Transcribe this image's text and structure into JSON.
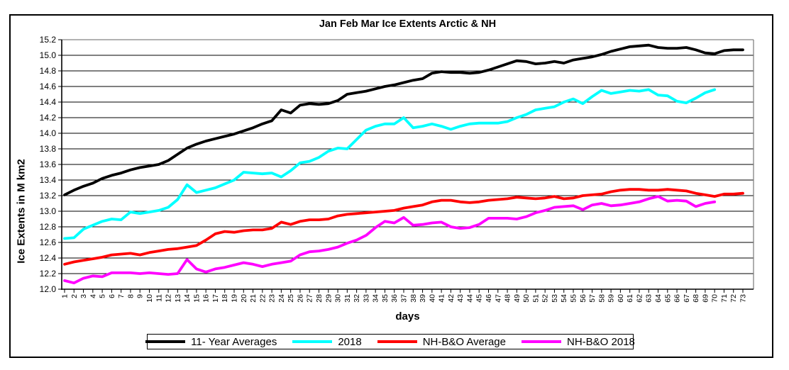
{
  "title": "Jan Feb Mar Ice Extents Arctic & NH",
  "legend": {
    "entries": [
      "11- Year Averages",
      "2018",
      "NH-B&O Average",
      "NH-B&O 2018"
    ]
  },
  "chart_data": {
    "type": "line",
    "title": "Jan Feb Mar Ice Extents Arctic & NH",
    "xlabel": "days",
    "ylabel": "Ice Extents in M km2",
    "ylim": [
      12.0,
      15.2
    ],
    "ytick_step": 0.2,
    "grid": "horizontal",
    "legend_position": "bottom",
    "yticks": [
      "12.0",
      "12.2",
      "12.4",
      "12.6",
      "12.8",
      "13.0",
      "13.2",
      "13.4",
      "13.6",
      "13.8",
      "14.0",
      "14.2",
      "14.4",
      "14.6",
      "14.8",
      "15.0",
      "15.2"
    ],
    "xticks": [
      1,
      2,
      3,
      4,
      5,
      6,
      7,
      8,
      9,
      10,
      11,
      12,
      13,
      14,
      15,
      16,
      17,
      18,
      19,
      20,
      21,
      22,
      23,
      24,
      25,
      26,
      27,
      28,
      29,
      30,
      31,
      32,
      33,
      34,
      35,
      36,
      37,
      38,
      39,
      40,
      41,
      42,
      43,
      44,
      45,
      46,
      47,
      48,
      49,
      50,
      51,
      52,
      53,
      54,
      55,
      56,
      57,
      58,
      59,
      60,
      61,
      62,
      63,
      64,
      65,
      66,
      67,
      68,
      69,
      70,
      71,
      72,
      73
    ],
    "series": [
      {
        "name": "11- Year Averages",
        "color": "#000000",
        "values": [
          13.21,
          13.27,
          13.32,
          13.36,
          13.42,
          13.46,
          13.49,
          13.53,
          13.56,
          13.58,
          13.6,
          13.65,
          13.73,
          13.81,
          13.86,
          13.9,
          13.93,
          13.96,
          13.99,
          14.03,
          14.07,
          14.12,
          14.16,
          14.3,
          14.26,
          14.36,
          14.38,
          14.37,
          14.38,
          14.42,
          14.5,
          14.52,
          14.54,
          14.57,
          14.6,
          14.62,
          14.65,
          14.68,
          14.7,
          14.77,
          14.79,
          14.78,
          14.78,
          14.77,
          14.78,
          14.81,
          14.85,
          14.89,
          14.93,
          14.92,
          14.89,
          14.9,
          14.92,
          14.9,
          14.94,
          14.96,
          14.98,
          15.01,
          15.05,
          15.08,
          15.11,
          15.12,
          15.13,
          15.1,
          15.09,
          15.09,
          15.1,
          15.07,
          15.03,
          15.02,
          15.06,
          15.07,
          15.07
        ]
      },
      {
        "name": "2018",
        "color": "#00FFFF",
        "values": [
          12.65,
          12.66,
          12.77,
          12.82,
          12.87,
          12.9,
          12.89,
          12.99,
          12.97,
          12.99,
          13.01,
          13.05,
          13.15,
          13.34,
          13.24,
          13.27,
          13.3,
          13.35,
          13.4,
          13.5,
          13.49,
          13.48,
          13.49,
          13.44,
          13.52,
          13.62,
          13.64,
          13.69,
          13.77,
          13.81,
          13.8,
          13.92,
          14.04,
          14.09,
          14.12,
          14.12,
          14.2,
          14.07,
          14.09,
          14.12,
          14.09,
          14.05,
          14.09,
          14.12,
          14.13,
          14.13,
          14.13,
          14.15,
          14.2,
          14.24,
          14.3,
          14.32,
          14.34,
          14.4,
          14.44,
          14.38,
          14.47,
          14.55,
          14.51,
          14.53,
          14.55,
          14.54,
          14.56,
          14.49,
          14.48,
          14.41,
          14.39,
          14.45,
          14.52,
          14.56
        ]
      },
      {
        "name": "NH-B&O Average",
        "color": "#FF0000",
        "values": [
          12.32,
          12.35,
          12.37,
          12.39,
          12.41,
          12.44,
          12.45,
          12.46,
          12.44,
          12.47,
          12.49,
          12.51,
          12.52,
          12.54,
          12.56,
          12.63,
          12.71,
          12.74,
          12.73,
          12.75,
          12.76,
          12.76,
          12.78,
          12.86,
          12.83,
          12.87,
          12.89,
          12.89,
          12.9,
          12.94,
          12.96,
          12.97,
          12.98,
          12.99,
          13.0,
          13.01,
          13.04,
          13.06,
          13.08,
          13.12,
          13.14,
          13.14,
          13.12,
          13.11,
          13.12,
          13.14,
          13.15,
          13.16,
          13.18,
          13.17,
          13.16,
          13.17,
          13.19,
          13.16,
          13.17,
          13.2,
          13.21,
          13.22,
          13.25,
          13.27,
          13.28,
          13.28,
          13.27,
          13.27,
          13.28,
          13.27,
          13.26,
          13.23,
          13.21,
          13.19,
          13.22,
          13.22,
          13.23
        ]
      },
      {
        "name": "NH-B&O 2018",
        "color": "#FF00FF",
        "values": [
          12.11,
          12.08,
          12.14,
          12.17,
          12.16,
          12.21,
          12.21,
          12.21,
          12.2,
          12.21,
          12.2,
          12.19,
          12.2,
          12.38,
          12.26,
          12.22,
          12.26,
          12.28,
          12.31,
          12.34,
          12.32,
          12.29,
          12.32,
          12.34,
          12.36,
          12.44,
          12.48,
          12.49,
          12.51,
          12.54,
          12.59,
          12.63,
          12.69,
          12.79,
          12.87,
          12.85,
          12.92,
          12.82,
          12.83,
          12.85,
          12.86,
          12.8,
          12.78,
          12.79,
          12.83,
          12.91,
          12.91,
          12.91,
          12.9,
          12.93,
          12.98,
          13.01,
          13.05,
          13.06,
          13.07,
          13.02,
          13.08,
          13.1,
          13.07,
          13.08,
          13.1,
          13.12,
          13.16,
          13.19,
          13.13,
          13.14,
          13.13,
          13.06,
          13.1,
          13.12
        ]
      }
    ]
  }
}
